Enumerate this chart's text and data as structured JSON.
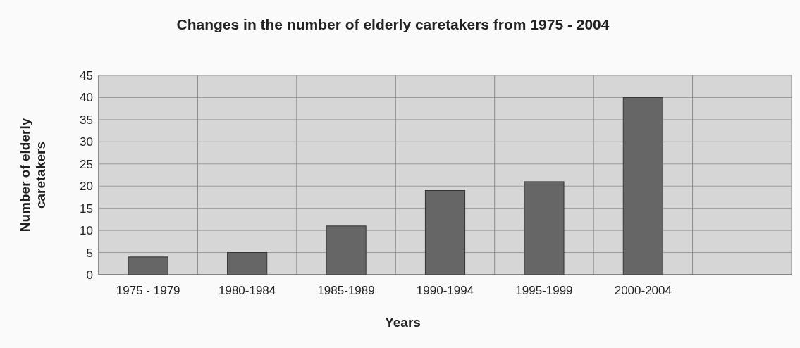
{
  "chart_data": {
    "type": "bar",
    "title": "Changes in the number of elderly caretakers from 1975 - 2004",
    "xlabel": "Years",
    "ylabel": "Number of elderly caretakers",
    "categories": [
      "1975 - 1979",
      "1980-1984",
      "1985-1989",
      "1990-1994",
      "1995-1999",
      "2000-2004",
      null
    ],
    "values": [
      4,
      5,
      11,
      19,
      21,
      40,
      null
    ],
    "color": "#666666",
    "ylim": [
      0,
      45
    ],
    "yticks": [
      0,
      5,
      10,
      15,
      20,
      25,
      30,
      35,
      40,
      45
    ],
    "grid": true
  }
}
